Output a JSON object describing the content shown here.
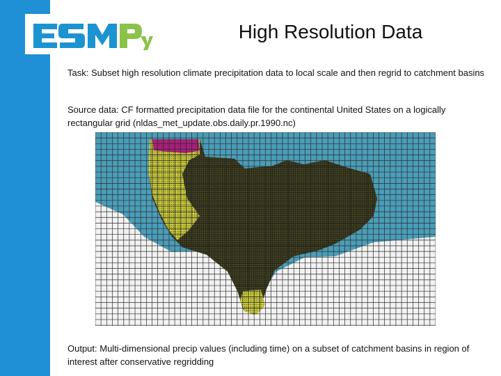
{
  "slide": {
    "title": "High Resolution Data",
    "task": "Task: Subset high resolution climate precipitation data to local scale and then regrid to catchment basins",
    "source": "Source data: CF formatted precipitation data file for the continental United States on a logically rectangular grid (nldas_met_update.obs.daily.pr.1990.nc)",
    "output": "Output: Multi-dimensional precip values (including time) on a subset of catchment basins in region of interest after conservative regridding"
  },
  "logo": {
    "text": "ESMPy",
    "colors": {
      "esm": "#1b93d1",
      "py": "#8bc34a"
    }
  },
  "colors": {
    "accent_bar": "#1f8fd6",
    "ocean": "#4a9db8",
    "land_dark": "#1c1c12",
    "land_yellow": "#d8d832",
    "land_magenta": "#b0207e",
    "mesh": "#222222"
  }
}
